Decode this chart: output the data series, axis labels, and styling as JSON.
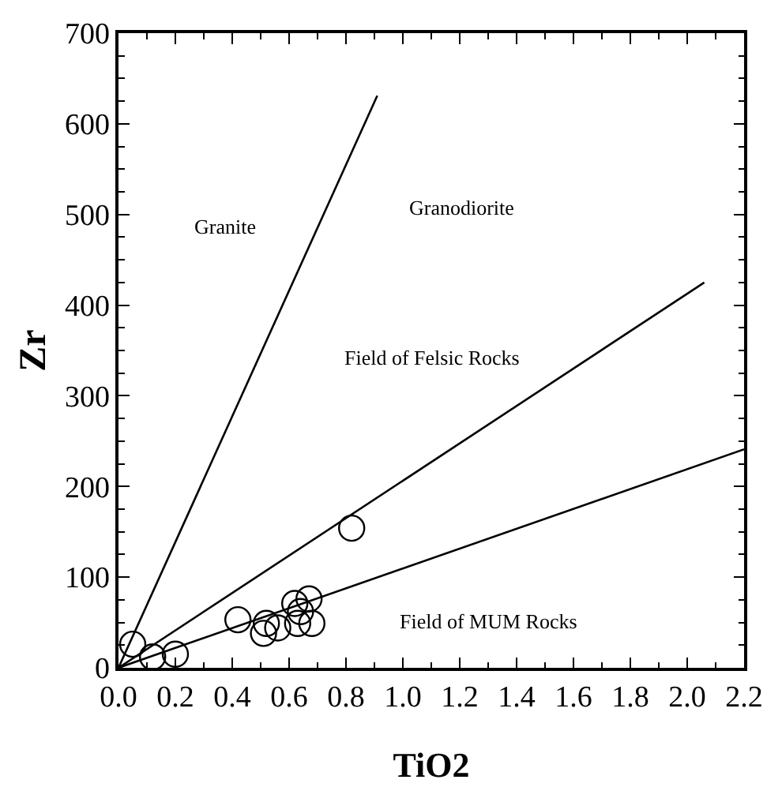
{
  "chart_data": {
    "type": "scatter",
    "xlabel": "TiO2",
    "ylabel": "Zr",
    "xlim": [
      0,
      2.2
    ],
    "ylim": [
      0,
      700
    ],
    "xticks": [
      {
        "value": 0,
        "label": "0.0"
      },
      0.2,
      0.4,
      0.6,
      0.8,
      {
        "value": 1,
        "label": "1.0"
      },
      1.2,
      1.4,
      1.6,
      1.8,
      {
        "value": 2,
        "label": "2.0"
      },
      2.2
    ],
    "yticks": [
      0,
      100,
      200,
      300,
      400,
      500,
      600,
      700
    ],
    "series": [
      {
        "marker": "circle",
        "color": "#000000",
        "x": [
          0.05,
          0.12,
          0.2,
          0.42,
          0.51,
          0.52,
          0.56,
          0.62,
          0.63,
          0.64,
          0.67,
          0.68,
          0.82
        ],
        "values": [
          26,
          12,
          15,
          53,
          38,
          49,
          44,
          71,
          49,
          62,
          76,
          49,
          154
        ]
      },
      {
        "type": "line",
        "color": "#000000",
        "x": [
          0,
          0.91
        ],
        "values": [
          0,
          631
        ]
      },
      {
        "type": "line",
        "color": "#000000",
        "x": [
          0,
          2.06
        ],
        "values": [
          0,
          425
        ]
      },
      {
        "type": "line",
        "color": "#000000",
        "x": [
          0,
          2.2
        ],
        "values": [
          0,
          241
        ]
      }
    ],
    "annotations": [
      "Granite",
      "Granodiorite",
      "Field of Felsic Rocks",
      "Field of MUM Rocks"
    ]
  }
}
